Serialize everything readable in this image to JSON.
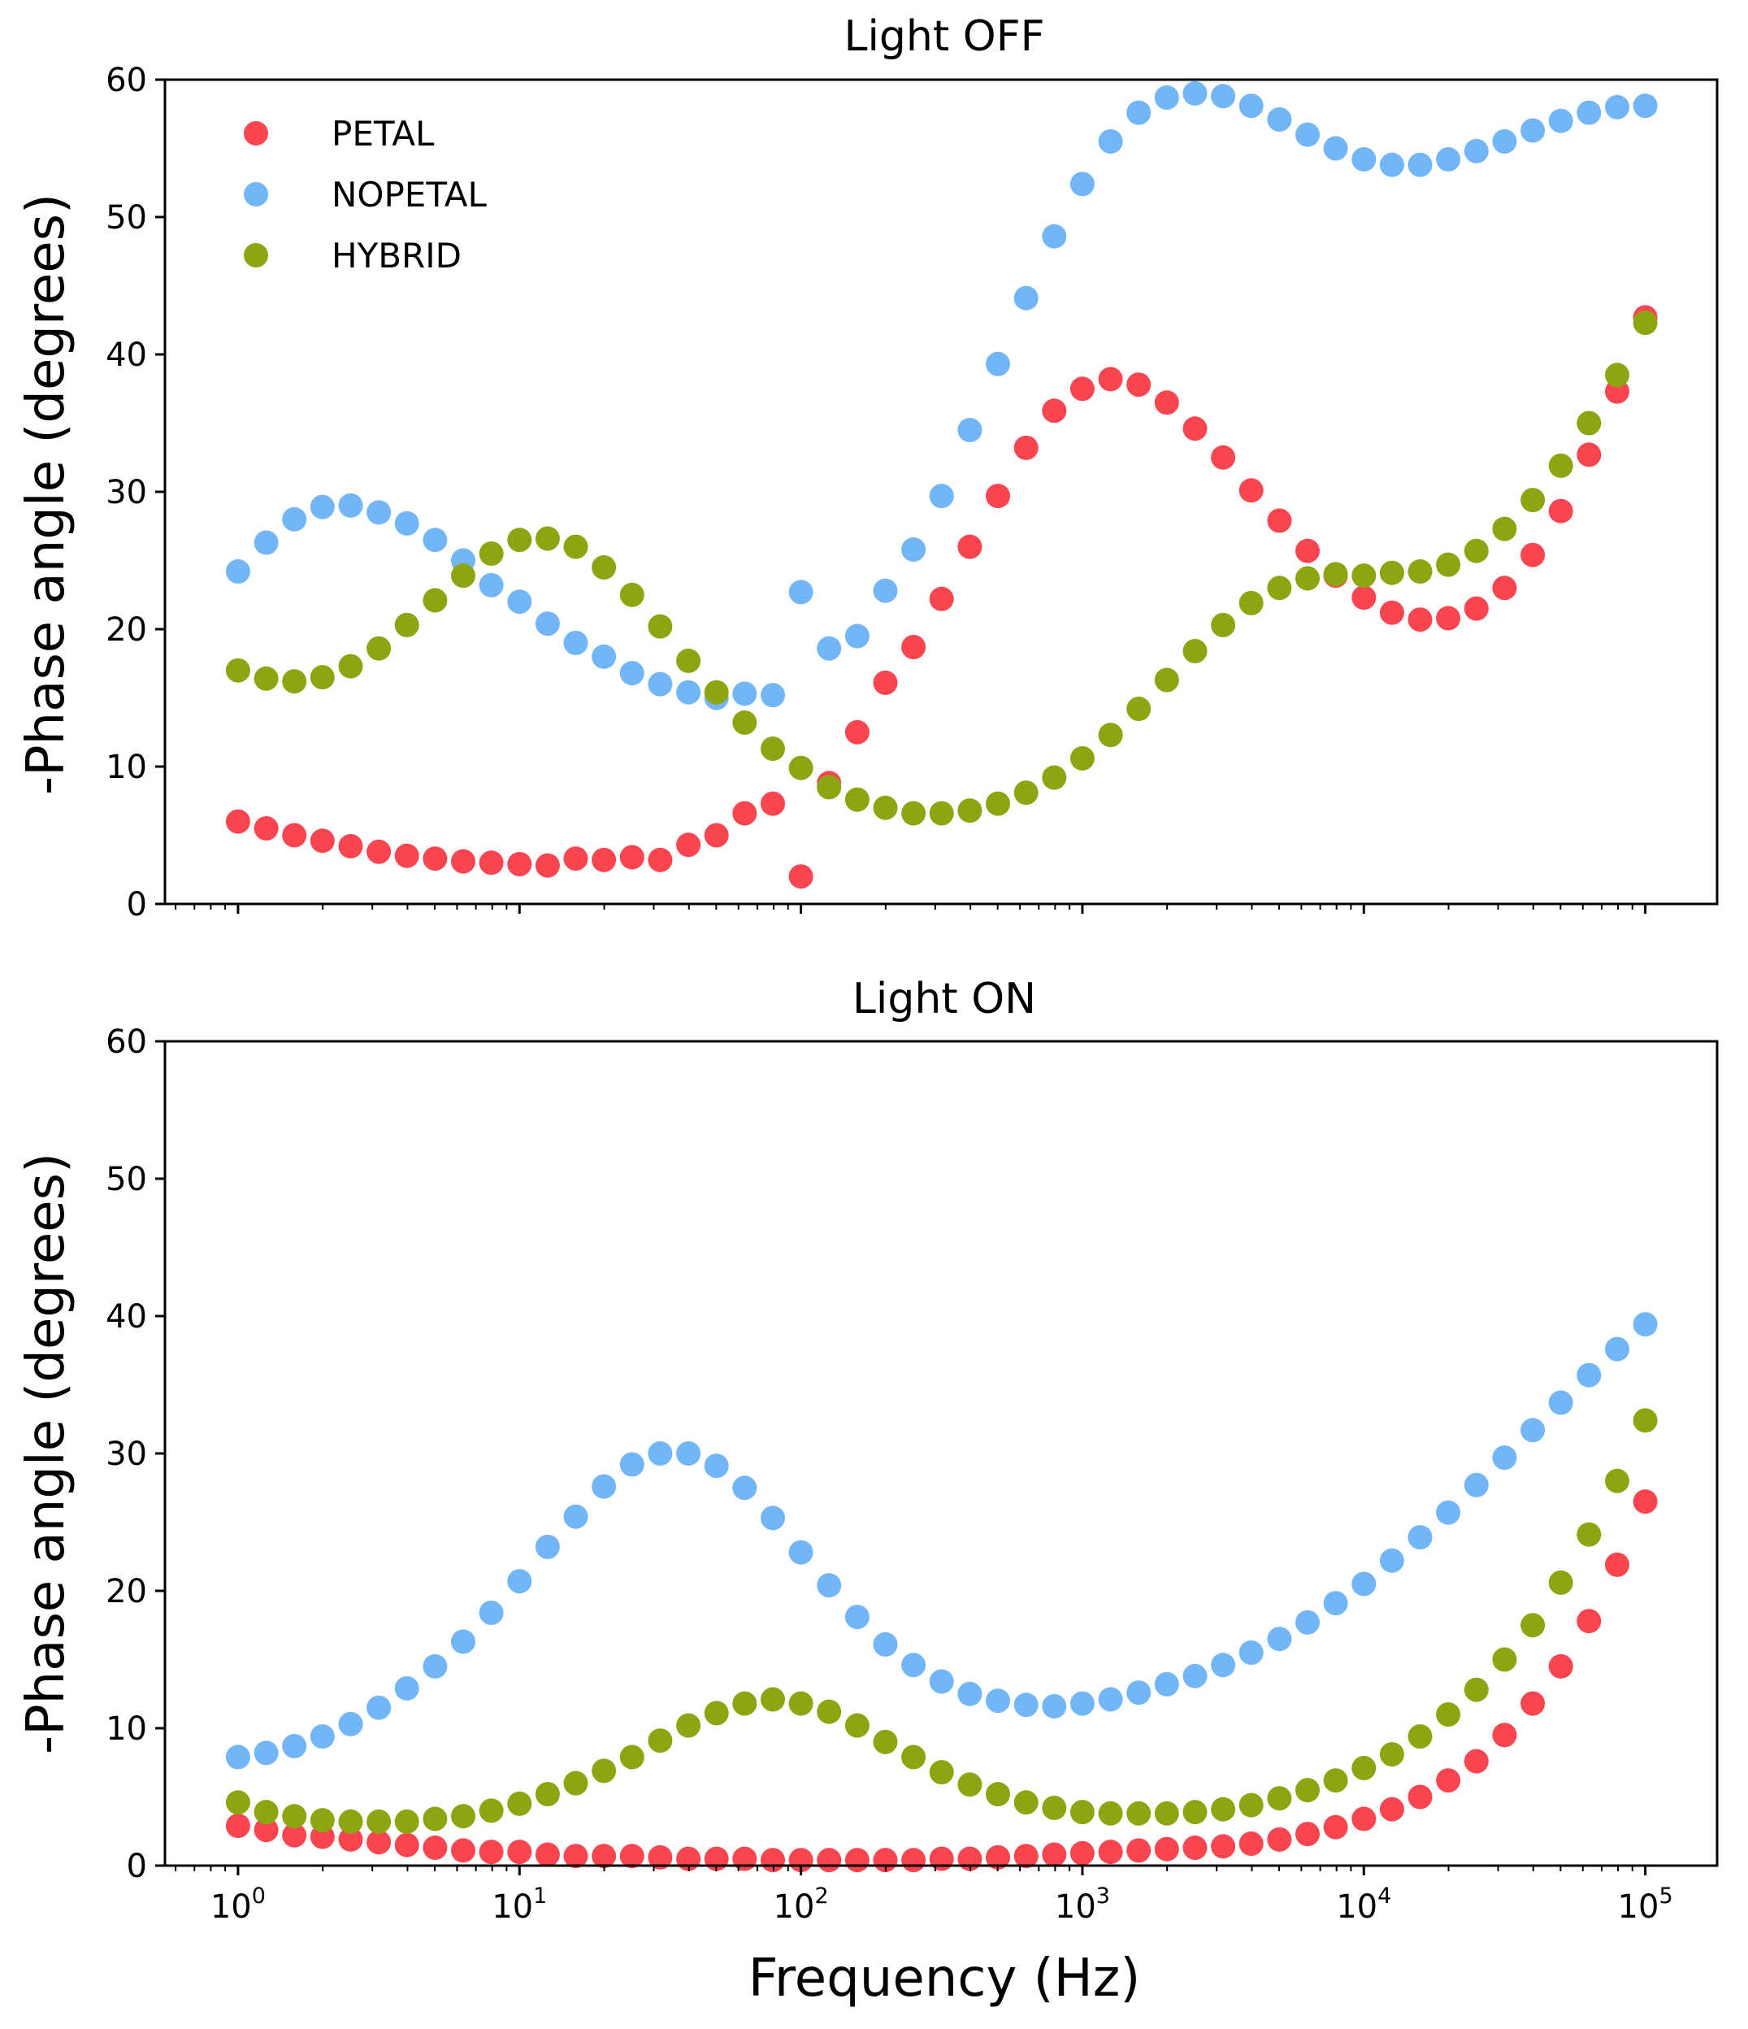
{
  "chart_data": [
    {
      "type": "scatter",
      "title": "Light OFF",
      "xlabel": "",
      "ylabel": "-Phase angle (degrees)",
      "xscale": "log",
      "xlim": [
        0.55,
        180000
      ],
      "ylim": [
        0,
        60
      ],
      "yticks": [
        0,
        10,
        20,
        30,
        40,
        50,
        60
      ],
      "xtick_labels": [],
      "legend_position": "upper-left",
      "x": [
        1.0,
        1.259,
        1.585,
        1.995,
        2.512,
        3.162,
        3.981,
        5.012,
        6.31,
        7.943,
        10.0,
        12.59,
        15.85,
        19.95,
        25.12,
        31.62,
        39.81,
        50.12,
        63.1,
        79.43,
        100.0,
        125.9,
        158.5,
        199.5,
        251.2,
        316.2,
        398.1,
        501.2,
        631.0,
        794.3,
        1000.0,
        1259,
        1585,
        1995,
        2512,
        3162,
        3981,
        5012,
        6310,
        7943,
        10000,
        12590,
        15850,
        19950,
        25120,
        31620,
        39810,
        50120,
        63100,
        79430,
        100000
      ],
      "series": [
        {
          "name": "PETAL",
          "color": "#f8454f",
          "values": [
            6.0,
            5.5,
            5.0,
            4.6,
            4.2,
            3.8,
            3.5,
            3.3,
            3.1,
            3.0,
            2.9,
            2.8,
            3.3,
            3.2,
            3.4,
            3.2,
            4.3,
            5.0,
            6.6,
            7.3,
            2.0,
            8.8,
            12.5,
            16.1,
            18.7,
            22.2,
            26.0,
            29.7,
            33.2,
            35.9,
            37.5,
            38.2,
            37.8,
            36.5,
            34.6,
            32.5,
            30.1,
            27.9,
            25.7,
            23.9,
            22.3,
            21.2,
            20.7,
            20.8,
            21.5,
            23.0,
            25.4,
            28.6,
            32.7,
            37.3,
            42.7
          ]
        },
        {
          "name": "NOPETAL",
          "color": "#72b6f7",
          "values": [
            24.2,
            26.3,
            28.0,
            28.9,
            29.0,
            28.5,
            27.7,
            26.5,
            25.0,
            23.2,
            22.0,
            20.4,
            19.0,
            18.0,
            16.8,
            16.0,
            15.4,
            15.0,
            15.3,
            15.2,
            22.7,
            18.6,
            19.5,
            22.8,
            25.8,
            29.7,
            34.5,
            39.3,
            44.1,
            48.6,
            52.4,
            55.5,
            57.6,
            58.7,
            59.0,
            58.8,
            58.1,
            57.1,
            56.0,
            55.0,
            54.2,
            53.8,
            53.8,
            54.2,
            54.8,
            55.5,
            56.3,
            57.0,
            57.6,
            58.0,
            58.1
          ]
        },
        {
          "name": "HYBRID",
          "color": "#8ea512",
          "values": [
            17.0,
            16.4,
            16.2,
            16.5,
            17.3,
            18.6,
            20.3,
            22.1,
            23.9,
            25.5,
            26.5,
            26.6,
            26.0,
            24.5,
            22.5,
            20.2,
            17.7,
            15.4,
            13.2,
            11.3,
            9.9,
            8.5,
            7.6,
            7.0,
            6.6,
            6.6,
            6.8,
            7.3,
            8.1,
            9.2,
            10.6,
            12.3,
            14.2,
            16.3,
            18.4,
            20.3,
            21.9,
            23.0,
            23.7,
            24.0,
            23.9,
            24.1,
            24.2,
            24.7,
            25.7,
            27.3,
            29.4,
            31.9,
            35.0,
            38.5,
            42.3
          ]
        }
      ]
    },
    {
      "type": "scatter",
      "title": "Light ON",
      "xlabel": "Frequency (Hz)",
      "ylabel": "-Phase angle (degrees)",
      "xscale": "log",
      "xlim": [
        0.55,
        180000
      ],
      "ylim": [
        0,
        60
      ],
      "yticks": [
        0,
        10,
        20,
        30,
        40,
        50,
        60
      ],
      "xtick_labels": [
        {
          "base": "10",
          "exp": "0"
        },
        {
          "base": "10",
          "exp": "1"
        },
        {
          "base": "10",
          "exp": "2"
        },
        {
          "base": "10",
          "exp": "3"
        },
        {
          "base": "10",
          "exp": "4"
        },
        {
          "base": "10",
          "exp": "5"
        }
      ],
      "x": [
        1.0,
        1.259,
        1.585,
        1.995,
        2.512,
        3.162,
        3.981,
        5.012,
        6.31,
        7.943,
        10.0,
        12.59,
        15.85,
        19.95,
        25.12,
        31.62,
        39.81,
        50.12,
        63.1,
        79.43,
        100.0,
        125.9,
        158.5,
        199.5,
        251.2,
        316.2,
        398.1,
        501.2,
        631.0,
        794.3,
        1000.0,
        1259,
        1585,
        1995,
        2512,
        3162,
        3981,
        5012,
        6310,
        7943,
        10000,
        12590,
        15850,
        19950,
        25120,
        31620,
        39810,
        50120,
        63100,
        79430,
        100000
      ],
      "series": [
        {
          "name": "PETAL",
          "color": "#f8454f",
          "values": [
            2.9,
            2.6,
            2.2,
            2.1,
            1.9,
            1.7,
            1.5,
            1.3,
            1.1,
            1.0,
            1.0,
            0.8,
            0.7,
            0.7,
            0.7,
            0.6,
            0.5,
            0.5,
            0.5,
            0.4,
            0.4,
            0.4,
            0.4,
            0.4,
            0.4,
            0.5,
            0.5,
            0.6,
            0.7,
            0.8,
            0.9,
            1.0,
            1.1,
            1.2,
            1.3,
            1.4,
            1.6,
            1.9,
            2.3,
            2.8,
            3.4,
            4.1,
            5.0,
            6.2,
            7.6,
            9.5,
            11.8,
            14.5,
            17.8,
            21.9,
            26.5
          ]
        },
        {
          "name": "NOPETAL",
          "color": "#72b6f7",
          "values": [
            7.9,
            8.2,
            8.7,
            9.4,
            10.3,
            11.5,
            12.9,
            14.5,
            16.3,
            18.4,
            20.7,
            23.2,
            25.4,
            27.6,
            29.2,
            30.0,
            30.0,
            29.1,
            27.5,
            25.3,
            22.8,
            20.4,
            18.1,
            16.1,
            14.6,
            13.4,
            12.5,
            12.0,
            11.7,
            11.6,
            11.8,
            12.1,
            12.6,
            13.2,
            13.8,
            14.6,
            15.5,
            16.5,
            17.7,
            19.1,
            20.5,
            22.2,
            23.9,
            25.7,
            27.7,
            29.7,
            31.7,
            33.7,
            35.7,
            37.6,
            39.4
          ]
        },
        {
          "name": "HYBRID",
          "color": "#8ea512",
          "values": [
            4.6,
            3.9,
            3.6,
            3.3,
            3.2,
            3.2,
            3.2,
            3.4,
            3.6,
            4.0,
            4.5,
            5.2,
            6.0,
            6.9,
            7.9,
            9.1,
            10.2,
            11.1,
            11.8,
            12.1,
            11.8,
            11.2,
            10.2,
            9.0,
            7.9,
            6.8,
            5.9,
            5.2,
            4.6,
            4.2,
            3.9,
            3.8,
            3.8,
            3.8,
            3.9,
            4.1,
            4.4,
            4.9,
            5.5,
            6.2,
            7.1,
            8.1,
            9.4,
            11.0,
            12.8,
            15.0,
            17.5,
            20.6,
            24.1,
            28.0,
            32.4
          ]
        }
      ]
    }
  ]
}
